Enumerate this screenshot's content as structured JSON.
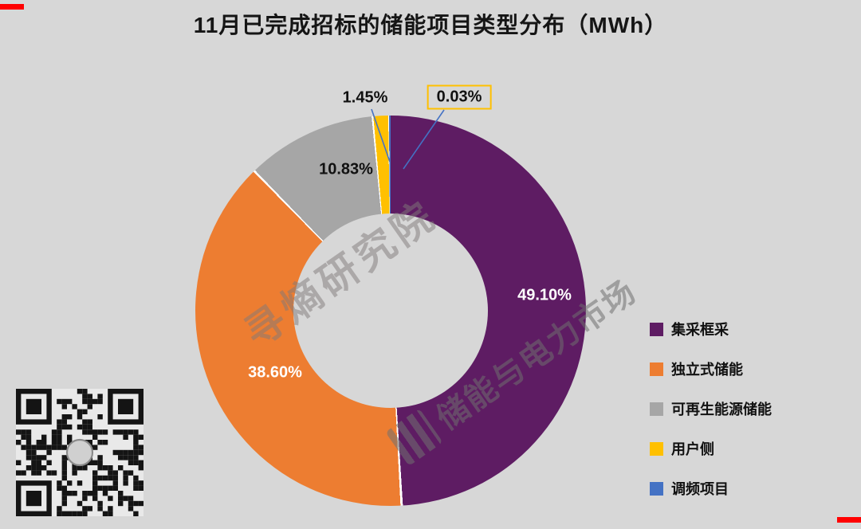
{
  "title": "11月已完成招标的储能项目类型分布（MWh）",
  "chart_data": {
    "type": "pie",
    "subtype": "donut",
    "title": "11月已完成招标的储能项目类型分布（MWh）",
    "unit": "MWh",
    "categories": [
      "集采框采",
      "独立式储能",
      "可再生能源储能",
      "用户侧",
      "调频项目"
    ],
    "values": [
      49.1,
      38.6,
      10.83,
      1.45,
      0.03
    ],
    "labels": [
      "49.10%",
      "38.60%",
      "10.83%",
      "1.45%",
      "0.03%"
    ],
    "colors": [
      "#5e1c63",
      "#ed7d31",
      "#a6a6a6",
      "#ffc000",
      "#4472c4"
    ],
    "start_angle_deg": 0,
    "direction": "clockwise",
    "legend_position": "right",
    "highlighted_label": "0.03%",
    "highlight_border_color": "#ffc000",
    "background_color": "#d7d7d7",
    "leader_line_color": "#4472c4"
  },
  "legend": {
    "items": [
      {
        "label": "集采框采",
        "color": "#5e1c63"
      },
      {
        "label": "独立式储能",
        "color": "#ed7d31"
      },
      {
        "label": "可再生能源储能",
        "color": "#a6a6a6"
      },
      {
        "label": "用户侧",
        "color": "#ffc000"
      },
      {
        "label": "调频项目",
        "color": "#4472c4"
      }
    ]
  },
  "watermarks": {
    "primary": "寻熵研究院",
    "secondary": "储能与电力市场"
  }
}
